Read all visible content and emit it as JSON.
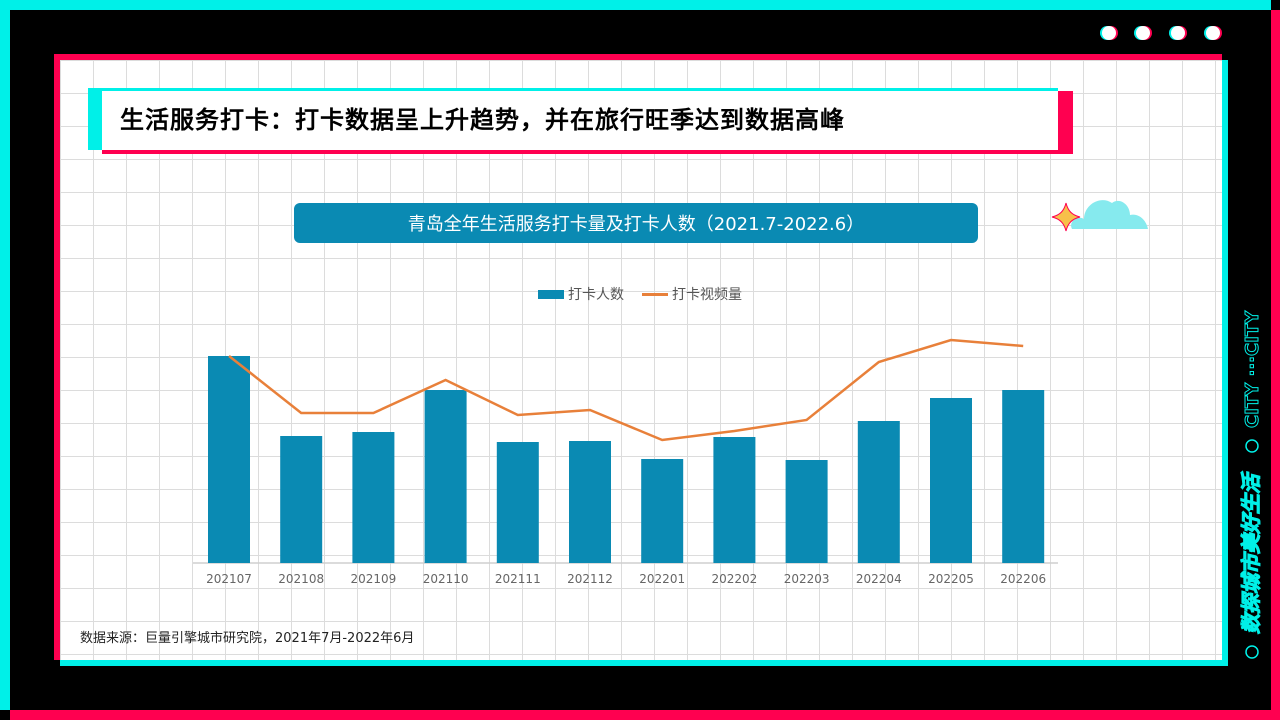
{
  "header": {
    "title": "生活服务打卡：打卡数据呈上升趋势，并在旅行旺季达到数据高峰"
  },
  "side_text": {
    "slogan": "数探城市美好生活",
    "city": "CITY ···CITY"
  },
  "footer": {
    "source": "数据来源：巨量引擎城市研究院，2021年7月-2022年6月"
  },
  "colors": {
    "cyan": "#00f0e8",
    "red": "#ff0050",
    "bar": "#0a8ab3",
    "line": "#e8803a"
  },
  "chart_data": {
    "type": "bar+line",
    "title": "青岛全年生活服务打卡量及打卡人数（2021.7-2022.6）",
    "categories": [
      "202107",
      "202108",
      "202109",
      "202110",
      "202111",
      "202112",
      "202201",
      "202202",
      "202203",
      "202204",
      "202205",
      "202206"
    ],
    "series": [
      {
        "name": "打卡人数",
        "type": "bar",
        "values": [
          207,
          127,
          131,
          173,
          121,
          122,
          104,
          126,
          103,
          142,
          165,
          173
        ]
      },
      {
        "name": "打卡视频量",
        "type": "line",
        "values": [
          207,
          150,
          150,
          183,
          148,
          153,
          123,
          132,
          143,
          201,
          223,
          217
        ]
      }
    ],
    "ylim": [
      0,
      280
    ],
    "y_axis_labels": "none",
    "grid": true,
    "legend": "top"
  }
}
